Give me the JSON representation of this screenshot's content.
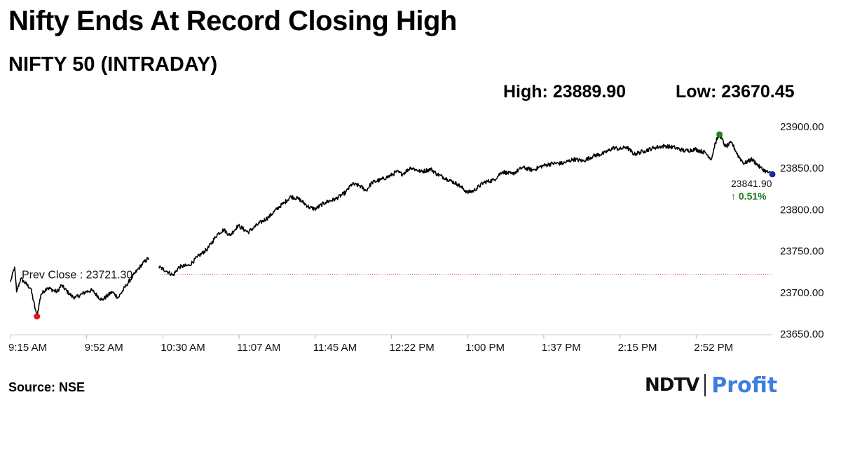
{
  "headline": "Nifty Ends At Record Closing High",
  "subtitle": "NIFTY 50 (INTRADAY)",
  "stats": {
    "high": "High: 23889.90",
    "low": "Low: 23670.45"
  },
  "source": "Source: NSE",
  "logo": {
    "brand": "NDTV",
    "product": "Profit"
  },
  "chart_data": {
    "type": "line",
    "series_color": "#000000",
    "ylim": [
      23650,
      23900
    ],
    "y_ticks": [
      23900,
      23850,
      23800,
      23750,
      23700,
      23650
    ],
    "y_tick_labels": [
      "23900.00",
      "23850.00",
      "23800.00",
      "23750.00",
      "23700.00",
      "23650.00"
    ],
    "x_tick_labels": [
      "9:15 AM",
      "9:52 AM",
      "10:30 AM",
      "11:07 AM",
      "11:45 AM",
      "12:22 PM",
      "1:00 PM",
      "1:37 PM",
      "2:15 PM",
      "2:52 PM"
    ],
    "grid": false,
    "prev_close": {
      "value": 23721.3,
      "label": "Prev Close : 23721.30",
      "color": "#c0392b"
    },
    "close": {
      "value": 23841.9,
      "label": "23841.90",
      "change_label": "↑ 0.51%",
      "change_color": "#1a7a1a",
      "marker_color": "#1a2a9a"
    },
    "high_point": {
      "time": "3:04 PM",
      "value": 23889.9,
      "marker_color": "#1a8a1a"
    },
    "low_point": {
      "time": "9:28 AM",
      "value": 23670.45,
      "marker_color": "#e01818"
    },
    "gap": {
      "from": "10:23 AM",
      "to": "10:28 AM"
    },
    "x": [
      "9:15 AM",
      "9:17 AM",
      "9:18 AM",
      "9:20 AM",
      "9:25 AM",
      "9:28 AM",
      "9:30 AM",
      "9:33 AM",
      "9:38 AM",
      "9:40 AM",
      "9:45 AM",
      "9:47 AM",
      "9:52 AM",
      "9:55 AM",
      "10:00 AM",
      "10:05 AM",
      "10:08 AM",
      "10:12 AM",
      "10:18 AM",
      "10:20 AM",
      "10:23 AM",
      "10:28 AM",
      "10:32 AM",
      "10:35 AM",
      "10:38 AM",
      "10:43 AM",
      "10:47 AM",
      "10:52 AM",
      "10:57 AM",
      "11:00 AM",
      "11:03 AM",
      "11:07 AM",
      "11:12 AM",
      "11:17 AM",
      "11:22 AM",
      "11:27 AM",
      "11:30 AM",
      "11:33 AM",
      "11:37 AM",
      "11:42 AM",
      "11:45 AM",
      "11:50 AM",
      "11:55 AM",
      "12:00 PM",
      "12:03 PM",
      "12:07 PM",
      "12:10 PM",
      "12:13 PM",
      "12:17 PM",
      "12:20 PM",
      "12:22 PM",
      "12:25 PM",
      "12:28 PM",
      "12:32 PM",
      "12:37 PM",
      "12:42 PM",
      "12:45 PM",
      "12:50 PM",
      "12:55 PM",
      "1:00 PM",
      "1:03 PM",
      "1:08 PM",
      "1:13 PM",
      "1:17 PM",
      "1:22 PM",
      "1:27 PM",
      "1:32 PM",
      "1:37 PM",
      "1:42 PM",
      "1:47 PM",
      "1:52 PM",
      "1:57 PM",
      "2:02 PM",
      "2:07 PM",
      "2:12 PM",
      "2:15 PM",
      "2:18 PM",
      "2:22 PM",
      "2:27 PM",
      "2:32 PM",
      "2:37 PM",
      "2:42 PM",
      "2:47 PM",
      "2:52 PM",
      "2:57 PM",
      "3:00 PM",
      "3:02 PM",
      "3:04 PM",
      "3:07 PM",
      "3:10 PM",
      "3:13 PM",
      "3:16 PM",
      "3:20 PM",
      "3:24 PM",
      "3:27 PM",
      "3:30 PM"
    ],
    "values": [
      23712,
      23730,
      23700,
      23716,
      23704,
      23670,
      23697,
      23705,
      23700,
      23708,
      23695,
      23693,
      23700,
      23702,
      23690,
      23700,
      23693,
      23708,
      23728,
      23734,
      23741,
      23730,
      23725,
      23720,
      23730,
      23732,
      23742,
      23752,
      23770,
      23775,
      23768,
      23780,
      23772,
      23782,
      23790,
      23802,
      23808,
      23815,
      23812,
      23802,
      23800,
      23808,
      23812,
      23820,
      23830,
      23828,
      23822,
      23832,
      23835,
      23838,
      23840,
      23845,
      23842,
      23850,
      23845,
      23848,
      23842,
      23836,
      23830,
      23820,
      23822,
      23832,
      23835,
      23845,
      23842,
      23850,
      23847,
      23852,
      23855,
      23855,
      23860,
      23858,
      23864,
      23867,
      23874,
      23872,
      23875,
      23866,
      23870,
      23874,
      23876,
      23874,
      23870,
      23872,
      23868,
      23860,
      23880,
      23889.9,
      23875,
      23880,
      23865,
      23855,
      23860,
      23850,
      23845,
      23841.9
    ]
  }
}
